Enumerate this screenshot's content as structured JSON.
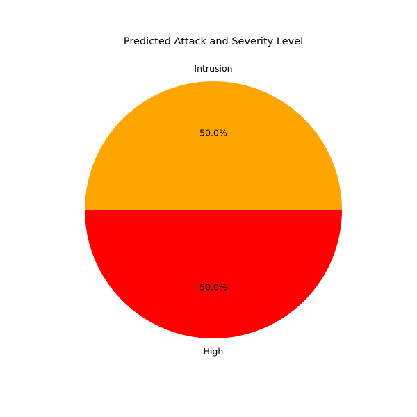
{
  "chart_data": {
    "type": "pie",
    "title": "Predicted Attack and Severity Level",
    "slices": [
      {
        "label": "Intrusion",
        "value": 50.0,
        "percent_label": "50.0%",
        "color": "#ffa500"
      },
      {
        "label": "High",
        "value": 50.0,
        "percent_label": "50.0%",
        "color": "#ff0000"
      }
    ],
    "start_angle": 0,
    "direction": "counterclockwise"
  }
}
